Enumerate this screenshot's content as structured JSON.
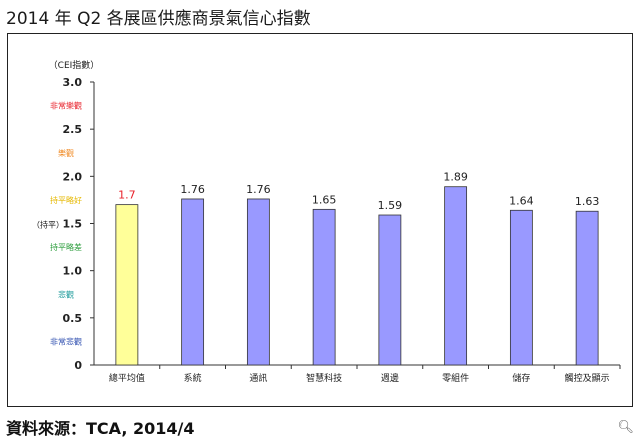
{
  "title": "2014 年 Q2 各展區供應商景氣信心指數",
  "source": "資料來源：TCA, 2014/4",
  "zoom_icon": "magnifier-icon",
  "chart_data": {
    "type": "bar",
    "title": "2014 年 Q2 各展區供應商景氣信心指數",
    "ylabel": "（CEI指數）",
    "ylim": [
      0,
      3.0
    ],
    "yticks": [
      "0",
      "0.5",
      "1.0",
      "1.5",
      "2.0",
      "2.5",
      "3.0"
    ],
    "grid": false,
    "categories": [
      "總平均值",
      "系統",
      "通訊",
      "智慧科技",
      "週邊",
      "零組件",
      "儲存",
      "觸控及顯示"
    ],
    "values": [
      1.7,
      1.76,
      1.76,
      1.65,
      1.59,
      1.89,
      1.64,
      1.63
    ],
    "value_labels": [
      "1.7",
      "1.76",
      "1.76",
      "1.65",
      "1.59",
      "1.89",
      "1.64",
      "1.63"
    ],
    "highlight_index": 0,
    "zones": [
      {
        "label": "非常樂觀",
        "level": 2.75,
        "color": "#e8202a"
      },
      {
        "label": "樂觀",
        "level": 2.25,
        "color": "#f08a24"
      },
      {
        "label": "持平略好",
        "level": 1.75,
        "color": "#e6b800"
      },
      {
        "label": "（持平）",
        "level": 1.5,
        "color": "#111111"
      },
      {
        "label": "持平略差",
        "level": 1.25,
        "color": "#2e9e3e"
      },
      {
        "label": "悲觀",
        "level": 0.75,
        "color": "#1a9a9a"
      },
      {
        "label": "非常悲觀",
        "level": 0.25,
        "color": "#3050b0"
      }
    ],
    "colors": {
      "bar": "#9999ff",
      "highlight": "#ffff99",
      "bar_stroke": "#333333",
      "value_label": "#222222",
      "highlight_label": "#e8202a"
    }
  }
}
